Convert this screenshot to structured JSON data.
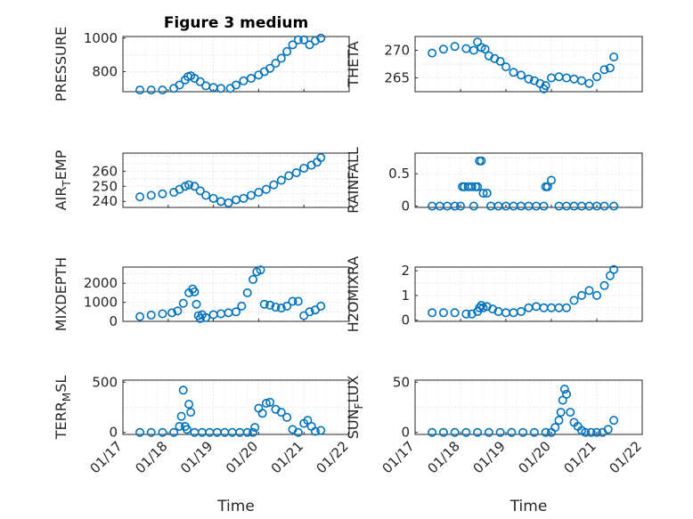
{
  "figure": {
    "title": "Figure 3 medium",
    "marker_color": "#0072BD"
  },
  "chart_data": [
    {
      "type": "scatter",
      "marker": "circle-open",
      "title": "Figure 3 medium",
      "ylabel": "PRESSURE",
      "xlabel": "",
      "ylim": [
        680,
        1010
      ],
      "yticks": [
        800,
        1000
      ],
      "yticklabels": [
        "800",
        "1000"
      ],
      "grid": true,
      "x": [
        "01/17 09:00",
        "01/17 15:00",
        "01/17 21:00",
        "01/18 03:00",
        "01/18 06:00",
        "01/18 09:00",
        "01/18 10:30",
        "01/18 12:00",
        "01/18 14:00",
        "01/18 17:00",
        "01/18 20:00",
        "01/19 00:00",
        "01/19 04:00",
        "01/19 09:00",
        "01/19 12:00",
        "01/19 16:00",
        "01/19 20:00",
        "01/20 00:00",
        "01/20 03:00",
        "01/20 06:00",
        "01/20 09:00",
        "01/20 12:00",
        "01/20 15:00",
        "01/20 18:00",
        "01/20 21:00",
        "01/21 00:00",
        "01/21 03:00",
        "01/21 06:00",
        "01/21 09:00"
      ],
      "y": [
        690,
        690,
        690,
        700,
        720,
        750,
        770,
        775,
        760,
        740,
        715,
        705,
        700,
        700,
        720,
        745,
        760,
        780,
        800,
        820,
        850,
        880,
        920,
        960,
        990,
        990,
        960,
        985,
        1000
      ]
    },
    {
      "type": "scatter",
      "marker": "circle-open",
      "ylabel": "THETA",
      "xlabel": "",
      "ylim": [
        262.5,
        272.5
      ],
      "yticks": [
        265,
        270
      ],
      "yticklabels": [
        "265",
        "270"
      ],
      "grid": true,
      "x": [
        "01/17 09:00",
        "01/17 15:00",
        "01/17 21:00",
        "01/18 03:00",
        "01/18 07:00",
        "01/18 09:00",
        "01/18 11:00",
        "01/18 13:00",
        "01/18 15:00",
        "01/18 18:00",
        "01/18 21:00",
        "01/19 00:00",
        "01/19 04:00",
        "01/19 08:00",
        "01/19 12:00",
        "01/19 15:00",
        "01/19 18:00",
        "01/19 20:00",
        "01/19 21:00",
        "01/20 00:00",
        "01/20 04:00",
        "01/20 08:00",
        "01/20 12:00",
        "01/20 16:00",
        "01/20 20:00",
        "01/21 00:00",
        "01/21 04:00",
        "01/21 07:00",
        "01/21 09:00"
      ],
      "y": [
        269.5,
        270.2,
        270.7,
        270.3,
        270.0,
        271.5,
        270.5,
        270.2,
        269.0,
        268.5,
        268.0,
        267.0,
        266.0,
        265.5,
        264.8,
        264.5,
        264.0,
        263.0,
        263.6,
        265.0,
        265.2,
        265.0,
        264.8,
        264.5,
        264.0,
        265.2,
        266.5,
        266.8,
        268.8
      ]
    },
    {
      "type": "scatter",
      "marker": "circle-open",
      "ylabel": "AIR_TEMP",
      "xlabel": "",
      "ylim": [
        236,
        272
      ],
      "yticks": [
        240,
        250,
        260
      ],
      "yticklabels": [
        "240",
        "250",
        "260"
      ],
      "grid": true,
      "x": [
        "01/17 09:00",
        "01/17 15:00",
        "01/17 21:00",
        "01/18 03:00",
        "01/18 06:00",
        "01/18 09:00",
        "01/18 11:00",
        "01/18 14:00",
        "01/18 17:00",
        "01/18 20:00",
        "01/19 00:00",
        "01/19 04:00",
        "01/19 08:00",
        "01/19 12:00",
        "01/19 16:00",
        "01/19 20:00",
        "01/20 00:00",
        "01/20 04:00",
        "01/20 08:00",
        "01/20 12:00",
        "01/20 16:00",
        "01/20 20:00",
        "01/21 00:00",
        "01/21 04:00",
        "01/21 07:00",
        "01/21 09:00"
      ],
      "y": [
        243,
        244,
        245,
        246,
        248,
        250,
        251,
        250,
        247,
        244,
        242,
        240,
        239,
        241,
        242,
        244,
        246,
        248,
        251,
        254,
        257,
        259,
        262,
        264,
        266,
        269
      ]
    },
    {
      "type": "scatter",
      "marker": "circle-open",
      "ylabel": "RAINFALL",
      "xlabel": "",
      "ylim": [
        -0.02,
        0.82
      ],
      "yticks": [
        0,
        0.5
      ],
      "yticklabels": [
        "0",
        "0.5"
      ],
      "grid": true,
      "x": [
        "01/17 09:00",
        "01/17 13:00",
        "01/17 17:00",
        "01/17 21:00",
        "01/18 00:00",
        "01/18 01:00",
        "01/18 02:00",
        "01/18 04:00",
        "01/18 06:00",
        "01/18 07:00",
        "01/18 08:00",
        "01/18 09:00",
        "01/18 10:00",
        "01/18 11:00",
        "01/18 12:00",
        "01/18 14:00",
        "01/18 16:00",
        "01/18 20:00",
        "01/19 00:00",
        "01/19 04:00",
        "01/19 08:00",
        "01/19 12:00",
        "01/19 16:00",
        "01/19 20:00",
        "01/19 21:00",
        "01/19 22:00",
        "01/20 00:00",
        "01/20 04:00",
        "01/20 08:00",
        "01/20 12:00",
        "01/20 16:00",
        "01/20 20:00",
        "01/21 00:00",
        "01/21 04:00",
        "01/21 09:00"
      ],
      "y": [
        0,
        0,
        0,
        0,
        0,
        0.3,
        0.3,
        0.3,
        0.3,
        0,
        0.3,
        0.3,
        0.7,
        0.7,
        0.2,
        0.2,
        0,
        0,
        0,
        0,
        0,
        0,
        0,
        0,
        0.3,
        0.3,
        0.4,
        0,
        0,
        0,
        0,
        0,
        0,
        0,
        0
      ]
    },
    {
      "type": "scatter",
      "marker": "circle-open",
      "ylabel": "MIXDEPTH",
      "xlabel": "",
      "ylim": [
        0,
        2850
      ],
      "yticks": [
        0,
        1000,
        2000
      ],
      "yticklabels": [
        "0",
        "1000",
        "2000"
      ],
      "grid": true,
      "x": [
        "01/17 09:00",
        "01/17 15:00",
        "01/17 21:00",
        "01/18 02:00",
        "01/18 05:00",
        "01/18 08:00",
        "01/18 11:00",
        "01/18 13:00",
        "01/18 14:00",
        "01/18 15:00",
        "01/18 16:00",
        "01/18 17:00",
        "01/18 18:00",
        "01/18 20:00",
        "01/19 00:00",
        "01/19 04:00",
        "01/19 08:00",
        "01/19 12:00",
        "01/19 15:00",
        "01/19 18:00",
        "01/19 21:00",
        "01/19 23:00",
        "01/20 01:00",
        "01/20 03:00",
        "01/20 06:00",
        "01/20 09:00",
        "01/20 12:00",
        "01/20 15:00",
        "01/20 18:00",
        "01/20 21:00",
        "01/21 00:00",
        "01/21 03:00",
        "01/21 06:00",
        "01/21 09:00"
      ],
      "y": [
        250,
        330,
        400,
        450,
        550,
        950,
        1500,
        1700,
        1550,
        900,
        300,
        150,
        350,
        200,
        350,
        400,
        450,
        500,
        800,
        1500,
        2200,
        2600,
        2700,
        900,
        850,
        750,
        700,
        800,
        1050,
        1050,
        300,
        500,
        600,
        800
      ]
    },
    {
      "type": "scatter",
      "marker": "circle-open",
      "ylabel": "H2OMIXRA",
      "xlabel": "",
      "ylim": [
        -0.05,
        2.15
      ],
      "yticks": [
        0,
        1,
        2
      ],
      "yticklabels": [
        "0",
        "1",
        "2"
      ],
      "grid": true,
      "x": [
        "01/17 09:00",
        "01/17 15:00",
        "01/17 21:00",
        "01/18 03:00",
        "01/18 06:00",
        "01/18 09:00",
        "01/18 10:00",
        "01/18 11:00",
        "01/18 12:00",
        "01/18 14:00",
        "01/18 17:00",
        "01/18 20:00",
        "01/19 00:00",
        "01/19 04:00",
        "01/19 08:00",
        "01/19 12:00",
        "01/19 16:00",
        "01/19 20:00",
        "01/20 00:00",
        "01/20 04:00",
        "01/20 08:00",
        "01/20 12:00",
        "01/20 16:00",
        "01/20 20:00",
        "01/21 00:00",
        "01/21 04:00",
        "01/21 07:00",
        "01/21 09:00"
      ],
      "y": [
        0.3,
        0.3,
        0.3,
        0.25,
        0.25,
        0.35,
        0.5,
        0.6,
        0.5,
        0.55,
        0.45,
        0.35,
        0.3,
        0.3,
        0.35,
        0.5,
        0.55,
        0.5,
        0.5,
        0.5,
        0.5,
        0.8,
        1.0,
        1.2,
        1.0,
        1.4,
        1.8,
        2.05
      ]
    },
    {
      "type": "scatter",
      "marker": "circle-open",
      "ylabel": "TERR_MSL",
      "xlabel": "Time",
      "xlim": [
        "01/17",
        "01/22"
      ],
      "xticks": [
        "01/17",
        "01/18",
        "01/19",
        "01/20",
        "01/21",
        "01/22"
      ],
      "ylim": [
        -20,
        520
      ],
      "yticks": [
        0,
        500
      ],
      "yticklabels": [
        "0",
        "500"
      ],
      "grid": true,
      "x": [
        "01/17 09:00",
        "01/17 15:00",
        "01/17 21:00",
        "01/18 03:00",
        "01/18 06:00",
        "01/18 07:00",
        "01/18 08:00",
        "01/18 09:00",
        "01/18 10:00",
        "01/18 11:00",
        "01/18 12:00",
        "01/18 14:00",
        "01/18 18:00",
        "01/18 22:00",
        "01/19 02:00",
        "01/19 06:00",
        "01/19 10:00",
        "01/19 14:00",
        "01/19 18:00",
        "01/19 21:00",
        "01/19 22:00",
        "01/20 00:00",
        "01/20 02:00",
        "01/20 04:00",
        "01/20 06:00",
        "01/20 09:00",
        "01/20 12:00",
        "01/20 15:00",
        "01/20 18:00",
        "01/20 21:00",
        "01/21 00:00",
        "01/21 02:00",
        "01/21 04:00",
        "01/21 06:00",
        "01/21 09:00"
      ],
      "y": [
        0,
        0,
        0,
        0,
        60,
        160,
        420,
        60,
        30,
        280,
        200,
        0,
        0,
        0,
        0,
        0,
        0,
        0,
        0,
        0,
        50,
        240,
        190,
        290,
        300,
        230,
        200,
        150,
        30,
        0,
        90,
        120,
        60,
        10,
        20
      ]
    },
    {
      "type": "scatter",
      "marker": "circle-open",
      "ylabel": "SUN_FLUX",
      "xlabel": "Time",
      "xlim": [
        "01/17",
        "01/22"
      ],
      "xticks": [
        "01/17",
        "01/18",
        "01/19",
        "01/20",
        "01/21",
        "01/22"
      ],
      "ylim": [
        -2,
        52
      ],
      "yticks": [
        0,
        50
      ],
      "yticklabels": [
        "0",
        "50"
      ],
      "grid": true,
      "x": [
        "01/17 09:00",
        "01/17 15:00",
        "01/17 21:00",
        "01/18 03:00",
        "01/18 09:00",
        "01/18 15:00",
        "01/18 21:00",
        "01/19 03:00",
        "01/19 09:00",
        "01/19 15:00",
        "01/19 21:00",
        "01/20 00:00",
        "01/20 02:00",
        "01/20 04:00",
        "01/20 05:00",
        "01/20 06:00",
        "01/20 07:00",
        "01/20 08:00",
        "01/20 10:00",
        "01/20 12:00",
        "01/20 14:00",
        "01/20 16:00",
        "01/20 18:00",
        "01/20 21:00",
        "01/21 00:00",
        "01/21 03:00",
        "01/21 06:00",
        "01/21 09:00"
      ],
      "y": [
        0,
        0,
        0,
        0,
        0,
        0,
        0,
        0,
        0,
        0,
        0,
        0,
        5,
        12,
        20,
        32,
        43,
        38,
        20,
        10,
        6,
        2,
        0,
        0,
        0,
        0,
        3,
        12
      ]
    }
  ]
}
